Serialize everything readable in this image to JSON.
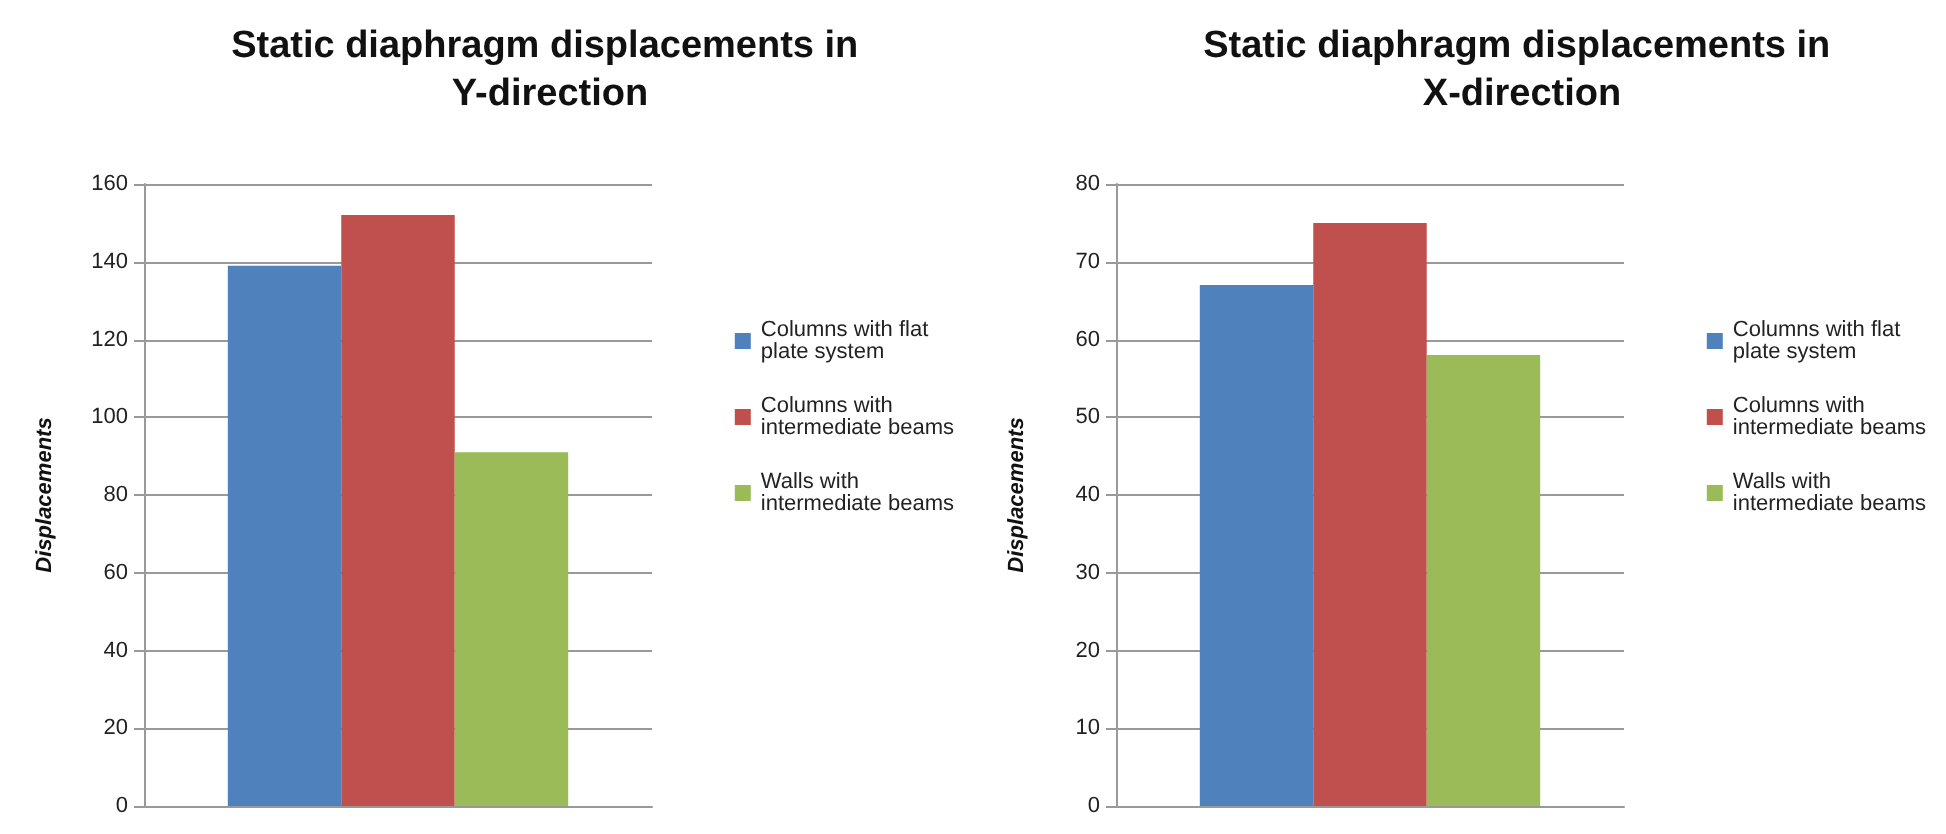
{
  "chart_data": [
    {
      "type": "bar",
      "title": "Static diaphragm displacements in Y-direction",
      "ylabel": "Displacements",
      "categories": [
        null
      ],
      "series": [
        {
          "name": "Columns with flat plate system",
          "color": "#4f81bd",
          "values": [
            139
          ]
        },
        {
          "name": "Columns with intermediate beams",
          "color": "#c0504d",
          "values": [
            152
          ]
        },
        {
          "name": "Walls with intermediate beams",
          "color": "#9bbb59",
          "values": [
            91
          ]
        }
      ],
      "ylim": [
        0,
        160
      ],
      "yticks": [
        0,
        20,
        40,
        60,
        80,
        100,
        120,
        140,
        160
      ],
      "grid": "y",
      "legend": "right"
    },
    {
      "type": "bar",
      "title": "Static diaphragm displacements in X-direction",
      "ylabel": "Displacements",
      "categories": [
        null
      ],
      "series": [
        {
          "name": "Columns with flat plate system",
          "color": "#4f81bd",
          "values": [
            67
          ]
        },
        {
          "name": "Columns with intermediate beams",
          "color": "#c0504d",
          "values": [
            75
          ]
        },
        {
          "name": "Walls with intermediate beams",
          "color": "#9bbb59",
          "values": [
            58
          ]
        }
      ],
      "ylim": [
        0,
        80
      ],
      "yticks": [
        0,
        10,
        20,
        30,
        40,
        50,
        60,
        70,
        80
      ],
      "grid": "y",
      "legend": "right"
    }
  ]
}
